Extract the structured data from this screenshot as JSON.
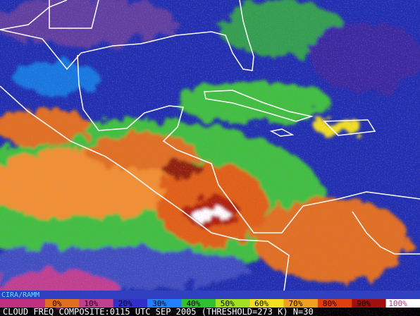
{
  "map": {
    "credit": "CIRA/RAMM",
    "caption": "CLOUD FREQ COMPOSITE:0115 UTC SEP 2005 (THRESHOLD=273 K) N=30",
    "legend": [
      {
        "label": "0%",
        "color": "#e07020"
      },
      {
        "label": "10%",
        "color": "#c04090"
      },
      {
        "label": "20%",
        "color": "#3030c8"
      },
      {
        "label": "30%",
        "color": "#2080ff"
      },
      {
        "label": "40%",
        "color": "#30c030"
      },
      {
        "label": "50%",
        "color": "#a0e020"
      },
      {
        "label": "60%",
        "color": "#f0e020"
      },
      {
        "label": "70%",
        "color": "#f0a020"
      },
      {
        "label": "80%",
        "color": "#e04010"
      },
      {
        "label": "90%",
        "color": "#a01010"
      },
      {
        "label": "100%",
        "color": "#ffffff"
      }
    ]
  }
}
